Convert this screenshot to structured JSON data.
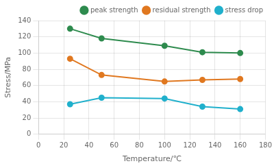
{
  "chart_data": {
    "type": "line",
    "x": [
      25,
      50,
      100,
      130,
      160
    ],
    "series": [
      {
        "name": "peak strength",
        "color": "#2e8b4e",
        "values": [
          130,
          118,
          109,
          101,
          100
        ]
      },
      {
        "name": "residual strength",
        "color": "#e07820",
        "values": [
          93,
          73,
          65,
          67,
          68
        ]
      },
      {
        "name": "stress drop",
        "color": "#20b0cc",
        "values": [
          37,
          45,
          44,
          34,
          31
        ]
      }
    ],
    "xlabel": "Temperature/℃",
    "ylabel": "Stress/MPa",
    "xlim": [
      0,
      180
    ],
    "ylim": [
      0,
      140
    ],
    "xticks": [
      0,
      20,
      40,
      60,
      80,
      100,
      120,
      140,
      160,
      180
    ],
    "yticks": [
      0,
      20,
      40,
      60,
      80,
      100,
      120,
      140
    ],
    "grid": true,
    "legend": "upper right",
    "marker": "o"
  }
}
